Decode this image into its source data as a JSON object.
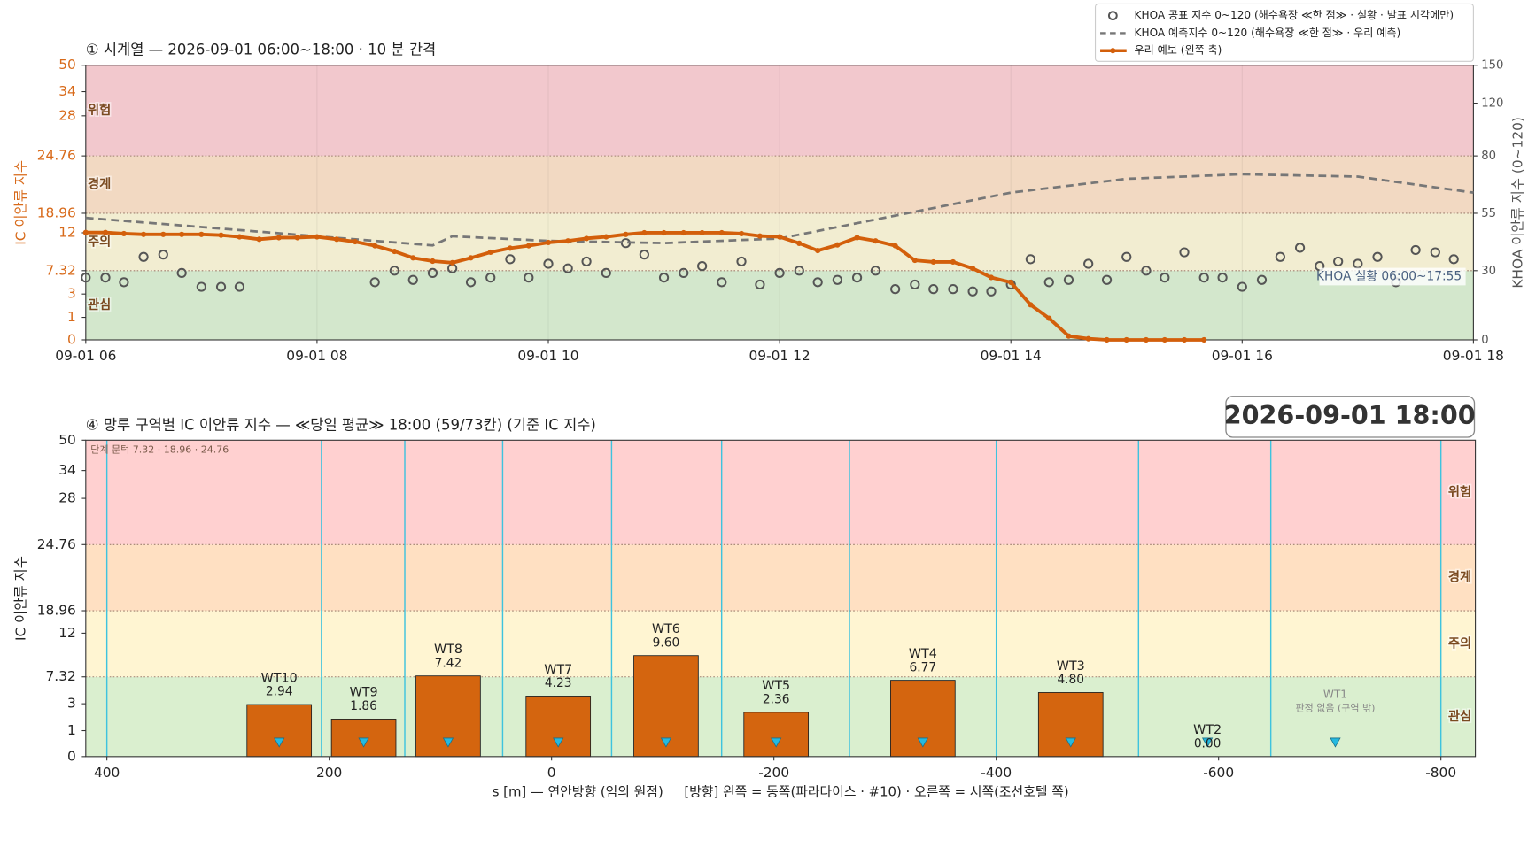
{
  "stamp": "2026-09-01  18:00",
  "chart_data": [
    {
      "type": "line",
      "title": "① 시계열 — 2026-09-01 06:00~18:00 · 10 분 간격",
      "ylabel": "IC 이안류 지수",
      "y2label": "KHOA 이안류 지수 (0~120)",
      "xlim": [
        6,
        18
      ],
      "xticks": [
        {
          "value": 6,
          "label": "09-01 06"
        },
        {
          "value": 8,
          "label": "09-01 08"
        },
        {
          "value": 10,
          "label": "09-01 10"
        },
        {
          "value": 12,
          "label": "09-01 12"
        },
        {
          "value": 14,
          "label": "09-01 14"
        },
        {
          "value": 16,
          "label": "09-01 16"
        },
        {
          "value": 18,
          "label": "09-01 18"
        }
      ],
      "ylim": [
        0,
        50
      ],
      "yticks": [
        0,
        1,
        3,
        7.32,
        12,
        18.96,
        24.76,
        28,
        34,
        50
      ],
      "y2lim": [
        0,
        150
      ],
      "y2ticks": [
        0,
        30,
        55,
        80,
        120,
        150
      ],
      "thresholds": [
        7.32,
        18.96,
        24.76
      ],
      "bands": [
        {
          "label": "관심",
          "color": "#d3e7cc"
        },
        {
          "label": "주의",
          "color": "#f2edd1"
        },
        {
          "label": "경계",
          "color": "#f2d9c2"
        },
        {
          "label": "위험",
          "color": "#f2c8cd"
        }
      ],
      "annotation": "KHOA 실황 06:00~17:55",
      "legend": "upper right",
      "x": [
        6,
        6.17,
        6.33,
        6.5,
        6.67,
        6.83,
        7,
        7.17,
        7.33,
        7.5,
        7.67,
        7.83,
        8,
        8.17,
        8.33,
        8.5,
        8.67,
        8.83,
        9,
        9.17,
        9.33,
        9.5,
        9.67,
        9.83,
        10,
        10.17,
        10.33,
        10.5,
        10.67,
        10.83,
        11,
        11.17,
        11.33,
        11.5,
        11.67,
        11.83,
        12,
        12.17,
        12.33,
        12.5,
        12.67,
        12.83,
        13,
        13.17,
        13.33,
        13.5,
        13.67,
        13.83,
        14,
        14.17,
        14.33,
        14.5,
        14.67,
        14.83,
        15,
        15.17,
        15.33,
        15.5,
        15.67,
        15.83,
        16,
        16.17,
        16.33,
        16.5,
        16.67,
        16.83,
        17,
        17.17,
        17.33,
        17.5,
        17.67,
        17.83,
        18
      ],
      "series": [
        {
          "name": "KHOA 공표 지수 0~120 (해수욕장 ≪한 점≫ · 실황 · 발표 시각에만)",
          "style": "markers",
          "axis": "y2",
          "color": "#555555",
          "values": [
            27,
            27,
            25,
            36,
            37,
            29,
            23,
            23,
            23,
            null,
            null,
            null,
            null,
            null,
            null,
            25,
            30,
            26,
            29,
            31,
            25,
            27,
            35,
            27,
            33,
            31,
            34,
            29,
            42,
            37,
            27,
            29,
            32,
            25,
            34,
            24,
            29,
            30,
            25,
            26,
            27,
            30,
            22,
            24,
            22,
            22,
            21,
            21,
            24,
            35,
            25,
            26,
            33,
            26,
            36,
            30,
            27,
            38,
            27,
            27,
            23,
            26,
            36,
            40,
            32,
            34,
            33,
            36,
            25,
            39,
            38,
            35,
            null
          ]
        },
        {
          "name": "KHOA 예측지수 0~120 (해수욕장 ≪한 점≫ · 우리 예측)",
          "style": "dashed",
          "axis": "y2",
          "color": "#777777",
          "x": [
            6,
            7,
            8,
            8.5,
            9,
            9.17,
            10,
            11,
            12,
            13,
            14,
            15,
            16,
            17,
            18
          ],
          "values": [
            53,
            49,
            45,
            43,
            41,
            45,
            43,
            42,
            44,
            54,
            64,
            70,
            72,
            71,
            64
          ]
        },
        {
          "name": "우리 예보 (왼쪽 축)",
          "style": "line-markers",
          "color": "#d35f0b",
          "values": [
            12.1,
            12.1,
            11.9,
            11.8,
            11.8,
            11.8,
            11.8,
            11.7,
            11.5,
            11.2,
            11.4,
            11.4,
            11.5,
            11.2,
            10.9,
            10.4,
            9.7,
            8.9,
            8.5,
            8.3,
            8.9,
            9.6,
            10.1,
            10.4,
            10.8,
            11.0,
            11.3,
            11.5,
            11.8,
            12.0,
            12.0,
            12.0,
            12.0,
            12.0,
            11.9,
            11.6,
            11.5,
            10.7,
            9.8,
            10.5,
            11.4,
            11.0,
            10.4,
            8.6,
            8.4,
            8.4,
            7.6,
            6.06,
            5.16,
            2.08,
            0.96,
            0.17,
            0.05,
            0,
            0,
            0,
            0,
            0,
            0,
            null,
            null,
            null,
            null,
            null,
            null,
            null,
            null,
            null,
            null,
            null,
            null,
            null,
            null
          ]
        }
      ]
    },
    {
      "type": "bar",
      "title": "④ 망루 구역별 IC 이안류 지수 — ≪당일 평균≫ 18:00  (59/73칸)   (기준 IC 지수)",
      "ylabel": "IC 이안류 지수",
      "xlabel": "s [m] — 연안방향 (임의 원점)     [방향] 왼쪽 = 동쪽(파라다이스 · #10) · 오른쪽 = 서쪽(조선호텔 쪽)",
      "xlim": [
        419,
        -831
      ],
      "xticks": [
        400,
        200,
        0,
        -200,
        -400,
        -600,
        -800
      ],
      "ylim": [
        0,
        50
      ],
      "yticks": [
        0,
        1,
        3,
        7.32,
        12,
        18.96,
        24.76,
        28,
        34,
        50
      ],
      "thresholds": [
        7.32,
        18.96,
        24.76
      ],
      "threshold_note": "단계 문턱 7.32 · 18.96 · 24.76",
      "bands": [
        {
          "label": "관심",
          "color": "#daefcf"
        },
        {
          "label": "주의",
          "color": "#fff5d2"
        },
        {
          "label": "경계",
          "color": "#ffe0c2"
        },
        {
          "label": "위험",
          "color": "#ffd0d0"
        }
      ],
      "zone_edges": [
        400,
        207,
        132,
        44,
        -54,
        -153,
        -268,
        -400,
        -528,
        -647,
        -800
      ],
      "categories": [
        "WT10",
        "WT9",
        "WT8",
        "WT7",
        "WT6",
        "WT5",
        "WT4",
        "WT3",
        "WT2",
        "WT1"
      ],
      "x": [
        245,
        169,
        93,
        -6,
        -103,
        -202,
        -334,
        -467,
        -590,
        -705
      ],
      "values": [
        2.94,
        1.86,
        7.42,
        4.23,
        9.6,
        2.36,
        6.77,
        4.8,
        0,
        null
      ],
      "value_labels": [
        "2.94",
        "1.86",
        "7.42",
        "4.23",
        "9.60",
        "2.36",
        "6.77",
        "4.80",
        "0.00",
        "판정 없음 (구역 밖)"
      ],
      "color": "#d4650f"
    }
  ]
}
